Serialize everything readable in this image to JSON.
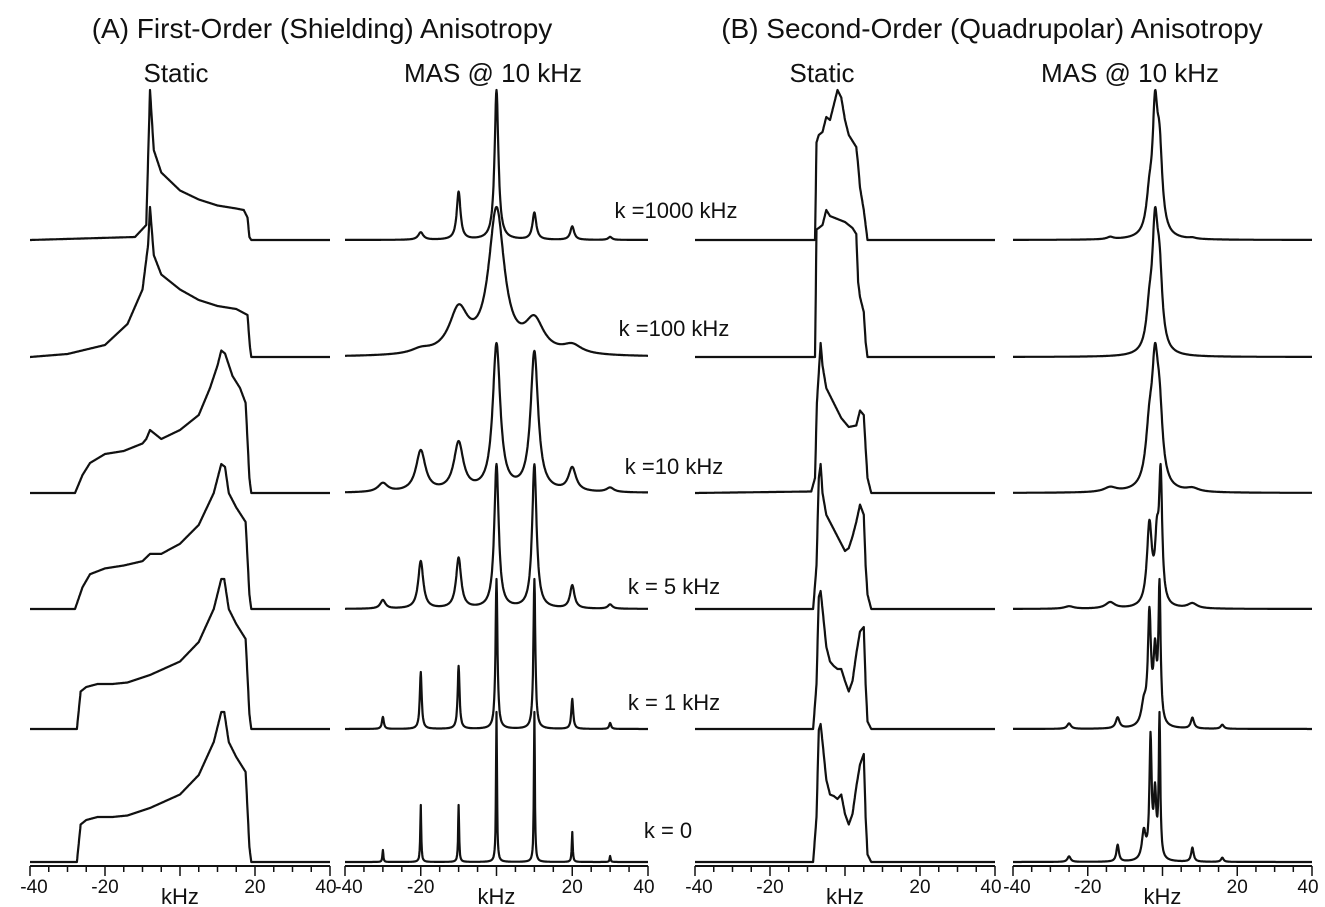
{
  "titles": {
    "panel_a": "(A) First-Order (Shielding) Anisotropy",
    "panel_b": "(B) Second-Order (Quadrupolar) Anisotropy"
  },
  "column_headers": {
    "a_static": "Static",
    "a_mas": "MAS @ 10 kHz",
    "b_static": "Static",
    "b_mas": "MAS @ 10 kHz"
  },
  "exchange_rates": [
    "k =1000 kHz",
    "k =100 kHz",
    "k =10 kHz",
    "k = 5 kHz",
    "k = 1 kHz",
    "k = 0"
  ],
  "x_axis": {
    "unit_label": "kHz",
    "range": [
      -40,
      40
    ],
    "tick_labels": [
      "-40",
      "-20",
      "0",
      "20",
      "40"
    ],
    "minor_step": 5
  },
  "colors": {
    "ink": "#111111",
    "background": "#ffffff"
  },
  "chart_data": [
    {
      "type": "line",
      "title": "First-Order (Shielding) Anisotropy - Static",
      "xlabel": "kHz",
      "xlim": [
        -40,
        40
      ],
      "series": [
        {
          "name": "k =1000 kHz",
          "x": [
            -40,
            -12,
            -9,
            -8,
            -7,
            -5,
            0,
            5,
            10,
            15,
            17,
            18,
            18.5,
            19,
            40
          ],
          "values": [
            0,
            0.02,
            0.1,
            1.0,
            0.6,
            0.45,
            0.33,
            0.27,
            0.23,
            0.21,
            0.2,
            0.15,
            0.02,
            0,
            0
          ]
        },
        {
          "name": "k =100 kHz",
          "x": [
            -40,
            -30,
            -20,
            -14,
            -10,
            -8.5,
            -8,
            -7,
            -5,
            0,
            5,
            10,
            15,
            18,
            18.6,
            19,
            40
          ],
          "values": [
            0,
            0.02,
            0.08,
            0.22,
            0.45,
            0.75,
            1.0,
            0.68,
            0.55,
            0.45,
            0.38,
            0.34,
            0.32,
            0.28,
            0.08,
            0,
            0
          ]
        },
        {
          "name": "k =10 kHz",
          "x": [
            -40,
            -28,
            -26,
            -24,
            -20,
            -15,
            -10,
            -9,
            -8,
            -5,
            0,
            5,
            8,
            10,
            11,
            12,
            14,
            16,
            17.5,
            18.5,
            19,
            40
          ],
          "values": [
            0,
            0,
            0.12,
            0.2,
            0.26,
            0.28,
            0.33,
            0.36,
            0.42,
            0.36,
            0.42,
            0.52,
            0.7,
            0.85,
            0.95,
            0.93,
            0.78,
            0.7,
            0.6,
            0.1,
            0,
            0
          ]
        },
        {
          "name": "k = 5 kHz",
          "x": [
            -40,
            -28,
            -26,
            -24,
            -20,
            -15,
            -10,
            -8,
            -5,
            0,
            5,
            9,
            11,
            12,
            13,
            15,
            17.5,
            18.5,
            19,
            40
          ],
          "values": [
            0,
            0,
            0.15,
            0.24,
            0.28,
            0.3,
            0.33,
            0.38,
            0.38,
            0.45,
            0.58,
            0.8,
            1.0,
            0.98,
            0.8,
            0.7,
            0.6,
            0.1,
            0,
            0
          ]
        },
        {
          "name": "k = 1 kHz",
          "x": [
            -40,
            -27.5,
            -26.5,
            -25,
            -22,
            -18,
            -14,
            -8,
            0,
            5,
            9,
            11,
            11.8,
            13,
            15,
            17.5,
            18.5,
            19,
            40
          ],
          "values": [
            0,
            0,
            0.25,
            0.28,
            0.3,
            0.3,
            0.31,
            0.36,
            0.45,
            0.58,
            0.8,
            1.0,
            1.0,
            0.8,
            0.7,
            0.6,
            0.1,
            0,
            0
          ]
        },
        {
          "name": "k = 0",
          "x": [
            -40,
            -27.5,
            -26.5,
            -25,
            -22,
            -18,
            -14,
            -8,
            0,
            5,
            9,
            11,
            11.8,
            13,
            15,
            17.5,
            18.5,
            19,
            40
          ],
          "values": [
            0,
            0,
            0.25,
            0.28,
            0.3,
            0.3,
            0.31,
            0.36,
            0.45,
            0.58,
            0.8,
            1.0,
            1.0,
            0.8,
            0.7,
            0.6,
            0.1,
            0,
            0
          ]
        }
      ]
    },
    {
      "type": "line",
      "title": "First-Order (Shielding) Anisotropy - MAS @ 10 kHz",
      "xlabel": "kHz",
      "xlim": [
        -40,
        40
      ],
      "series": [
        {
          "name": "k =1000 kHz",
          "peaks": [
            [
              -20,
              0.05,
              0.8
            ],
            [
              -10,
              0.32,
              0.6
            ],
            [
              0,
              1.0,
              0.6
            ],
            [
              10,
              0.18,
              0.6
            ],
            [
              20,
              0.09,
              0.6
            ],
            [
              30,
              0.02,
              0.6
            ]
          ]
        },
        {
          "name": "k =100 kHz",
          "peaks": [
            [
              -20,
              0.03,
              3
            ],
            [
              -10,
              0.3,
              3
            ],
            [
              0,
              1.0,
              2.5
            ],
            [
              10,
              0.22,
              3
            ],
            [
              20,
              0.06,
              3
            ]
          ]
        },
        {
          "name": "k =10 kHz",
          "peaks": [
            [
              -30,
              0.06,
              1.5
            ],
            [
              -20,
              0.28,
              1.5
            ],
            [
              -10,
              0.33,
              1.5
            ],
            [
              0,
              1.0,
              1.2
            ],
            [
              10,
              0.95,
              1.2
            ],
            [
              20,
              0.16,
              1.2
            ],
            [
              30,
              0.03,
              1.2
            ]
          ]
        },
        {
          "name": "k = 5 kHz",
          "peaks": [
            [
              -30,
              0.06,
              0.8
            ],
            [
              -20,
              0.33,
              0.8
            ],
            [
              -10,
              0.35,
              0.8
            ],
            [
              0,
              1.0,
              0.7
            ],
            [
              10,
              1.0,
              0.7
            ],
            [
              20,
              0.16,
              0.7
            ],
            [
              30,
              0.03,
              0.7
            ]
          ]
        },
        {
          "name": "k = 1 kHz",
          "peaks": [
            [
              -30,
              0.08,
              0.3
            ],
            [
              -20,
              0.38,
              0.3
            ],
            [
              -10,
              0.42,
              0.3
            ],
            [
              0,
              1.0,
              0.3
            ],
            [
              10,
              1.0,
              0.3
            ],
            [
              20,
              0.2,
              0.3
            ],
            [
              30,
              0.04,
              0.3
            ]
          ]
        },
        {
          "name": "k = 0",
          "peaks": [
            [
              -30,
              0.08,
              0.15
            ],
            [
              -20,
              0.38,
              0.15
            ],
            [
              -10,
              0.38,
              0.15
            ],
            [
              0,
              1.0,
              0.15
            ],
            [
              10,
              1.0,
              0.15
            ],
            [
              20,
              0.2,
              0.15
            ],
            [
              30,
              0.04,
              0.15
            ]
          ]
        }
      ]
    },
    {
      "type": "line",
      "title": "Second-Order (Quadrupolar) Anisotropy - Static",
      "xlabel": "kHz",
      "xlim": [
        -40,
        40
      ],
      "series": [
        {
          "name": "k =1000 kHz",
          "x": [
            -40,
            -8,
            -7.6,
            -7,
            -6,
            -5,
            -4,
            -3,
            -2,
            -1,
            0,
            1,
            2,
            3,
            3.5,
            4,
            5,
            5.5,
            6,
            40
          ],
          "values": [
            0,
            0,
            0.65,
            0.7,
            0.72,
            0.82,
            0.8,
            0.9,
            1.0,
            0.95,
            0.8,
            0.7,
            0.66,
            0.62,
            0.5,
            0.35,
            0.2,
            0.1,
            0,
            0
          ]
        },
        {
          "name": "k =100 kHz",
          "x": [
            -40,
            -8,
            -7.6,
            -7,
            -6,
            -5,
            -4,
            -3,
            -2,
            0,
            2,
            3,
            3.5,
            4,
            5,
            5.5,
            6,
            40
          ],
          "values": [
            0,
            0,
            0.85,
            0.86,
            0.88,
            0.98,
            0.94,
            0.93,
            0.92,
            0.9,
            0.86,
            0.82,
            0.5,
            0.4,
            0.3,
            0.1,
            0,
            0
          ]
        },
        {
          "name": "k =10 kHz",
          "x": [
            -40,
            -9,
            -8,
            -7.5,
            -6.5,
            -6,
            -5,
            -3,
            -1,
            1,
            3,
            4,
            5,
            5.5,
            6,
            7,
            40
          ],
          "values": [
            0,
            0.01,
            0.1,
            0.6,
            1.0,
            0.85,
            0.7,
            0.6,
            0.5,
            0.44,
            0.45,
            0.55,
            0.52,
            0.3,
            0.1,
            0,
            0
          ]
        },
        {
          "name": "k = 5 kHz",
          "x": [
            -40,
            -8.5,
            -7.6,
            -7,
            -6.5,
            -6,
            -5,
            -3,
            -1,
            0,
            1,
            2,
            3,
            4,
            5,
            5.5,
            6,
            7,
            40
          ],
          "values": [
            0,
            0,
            0.3,
            0.9,
            1.0,
            0.8,
            0.65,
            0.55,
            0.45,
            0.4,
            0.42,
            0.5,
            0.6,
            0.72,
            0.65,
            0.3,
            0.1,
            0,
            0
          ]
        },
        {
          "name": "k = 1 kHz",
          "x": [
            -40,
            -8.5,
            -7.6,
            -7,
            -6.5,
            -6,
            -5,
            -4,
            -3,
            -2,
            -1,
            0,
            1,
            2,
            3,
            4,
            5,
            5.5,
            6,
            7,
            40
          ],
          "values": [
            0,
            0,
            0.3,
            0.88,
            0.92,
            0.8,
            0.55,
            0.45,
            0.42,
            0.4,
            0.4,
            0.32,
            0.25,
            0.32,
            0.5,
            0.65,
            0.68,
            0.3,
            0.05,
            0,
            0
          ]
        },
        {
          "name": "k = 0",
          "x": [
            -40,
            -8.5,
            -7.6,
            -7,
            -6.5,
            -6,
            -5,
            -4,
            -3,
            -2,
            -1,
            0,
            1,
            2,
            3,
            4,
            5,
            5.5,
            6,
            7,
            40
          ],
          "values": [
            0,
            0,
            0.3,
            0.88,
            0.92,
            0.8,
            0.55,
            0.45,
            0.44,
            0.42,
            0.45,
            0.32,
            0.25,
            0.32,
            0.5,
            0.65,
            0.72,
            0.3,
            0.05,
            0,
            0
          ]
        }
      ]
    },
    {
      "type": "line",
      "title": "Second-Order (Quadrupolar) Anisotropy - MAS @ 10 kHz",
      "xlabel": "kHz",
      "xlim": [
        -40,
        40
      ],
      "series": [
        {
          "name": "k =1000 kHz",
          "peaks": [
            [
              -3.5,
              0.3,
              1.0
            ],
            [
              -2,
              1.0,
              0.8
            ],
            [
              -0.8,
              0.7,
              0.9
            ],
            [
              -14,
              0.02,
              1
            ],
            [
              8,
              0.01,
              1
            ]
          ]
        },
        {
          "name": "k =100 kHz",
          "peaks": [
            [
              -3.5,
              0.3,
              1.0
            ],
            [
              -2,
              1.0,
              0.9
            ],
            [
              -0.8,
              0.6,
              0.9
            ]
          ]
        },
        {
          "name": "k =10 kHz",
          "peaks": [
            [
              -3.5,
              0.45,
              1.2
            ],
            [
              -2,
              0.9,
              1.0
            ],
            [
              -0.8,
              0.55,
              1.0
            ],
            [
              -14,
              0.04,
              2
            ],
            [
              8,
              0.03,
              2
            ]
          ]
        },
        {
          "name": "k = 5 kHz",
          "peaks": [
            [
              -3.5,
              0.65,
              0.8
            ],
            [
              -1.5,
              0.45,
              0.6
            ],
            [
              -0.5,
              1.0,
              0.5
            ],
            [
              -14,
              0.05,
              1.5
            ],
            [
              8,
              0.04,
              1.5
            ],
            [
              -25,
              0.02,
              1.5
            ]
          ]
        },
        {
          "name": "k = 1 kHz",
          "peaks": [
            [
              -3.5,
              0.8,
              0.5
            ],
            [
              -2,
              0.5,
              0.5
            ],
            [
              -0.8,
              1.0,
              0.35
            ],
            [
              -5,
              0.15,
              0.8
            ],
            [
              -12,
              0.08,
              0.6
            ],
            [
              -25,
              0.04,
              0.6
            ],
            [
              8,
              0.08,
              0.5
            ],
            [
              16,
              0.03,
              0.5
            ]
          ]
        },
        {
          "name": "k = 0",
          "peaks": [
            [
              -3.2,
              0.85,
              0.35
            ],
            [
              -2,
              0.45,
              0.4
            ],
            [
              -0.8,
              1.0,
              0.25
            ],
            [
              -5,
              0.2,
              0.6
            ],
            [
              -12,
              0.12,
              0.4
            ],
            [
              -25,
              0.04,
              0.5
            ],
            [
              8,
              0.1,
              0.4
            ],
            [
              16,
              0.03,
              0.4
            ]
          ]
        }
      ]
    }
  ]
}
